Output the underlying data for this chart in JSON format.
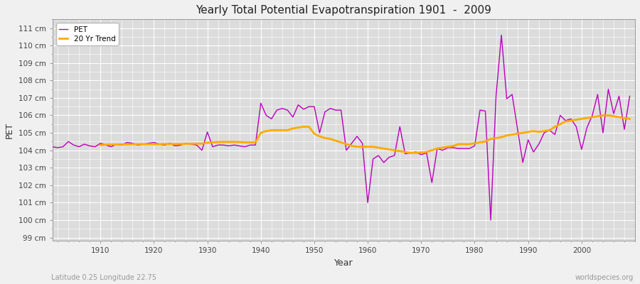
{
  "title": "Yearly Total Potential Evapotranspiration 1901  -  2009",
  "xlabel": "Year",
  "ylabel": "PET",
  "subtitle_left": "Latitude 0.25 Longitude 22.75",
  "subtitle_right": "worldspecies.org",
  "ylim": [
    98.8,
    111.5
  ],
  "ytick_labels": [
    "99 cm",
    "100 cm",
    "101 cm",
    "102 cm",
    "103 cm",
    "104 cm",
    "105 cm",
    "106 cm",
    "107 cm",
    "108 cm",
    "109 cm",
    "110 cm",
    "111 cm"
  ],
  "ytick_values": [
    99,
    100,
    101,
    102,
    103,
    104,
    105,
    106,
    107,
    108,
    109,
    110,
    111
  ],
  "pet_color": "#bb00bb",
  "trend_color": "#ffaa00",
  "bg_color": "#f0f0f0",
  "plot_bg_color": "#dcdcdc",
  "years": [
    1901,
    1902,
    1903,
    1904,
    1905,
    1906,
    1907,
    1908,
    1909,
    1910,
    1911,
    1912,
    1913,
    1914,
    1915,
    1916,
    1917,
    1918,
    1919,
    1920,
    1921,
    1922,
    1923,
    1924,
    1925,
    1926,
    1927,
    1928,
    1929,
    1930,
    1931,
    1932,
    1933,
    1934,
    1935,
    1936,
    1937,
    1938,
    1939,
    1940,
    1941,
    1942,
    1943,
    1944,
    1945,
    1946,
    1947,
    1948,
    1949,
    1950,
    1951,
    1952,
    1953,
    1954,
    1955,
    1956,
    1957,
    1958,
    1959,
    1960,
    1961,
    1962,
    1963,
    1964,
    1965,
    1966,
    1967,
    1968,
    1969,
    1970,
    1971,
    1972,
    1973,
    1974,
    1975,
    1976,
    1977,
    1978,
    1979,
    1980,
    1981,
    1982,
    1983,
    1984,
    1985,
    1986,
    1987,
    1988,
    1989,
    1990,
    1991,
    1992,
    1993,
    1994,
    1995,
    1996,
    1997,
    1998,
    1999,
    2000,
    2001,
    2002,
    2003,
    2004,
    2005,
    2006,
    2007,
    2008,
    2009
  ],
  "pet_values": [
    104.2,
    104.15,
    104.2,
    104.5,
    104.3,
    104.2,
    104.35,
    104.25,
    104.2,
    104.4,
    104.3,
    104.2,
    104.35,
    104.3,
    104.45,
    104.4,
    104.3,
    104.35,
    104.4,
    104.45,
    104.35,
    104.3,
    104.4,
    104.25,
    104.3,
    104.4,
    104.35,
    104.3,
    104.0,
    105.05,
    104.2,
    104.3,
    104.3,
    104.25,
    104.3,
    104.25,
    104.2,
    104.3,
    104.3,
    106.7,
    106.0,
    105.8,
    106.3,
    106.4,
    106.3,
    105.9,
    106.6,
    106.35,
    106.5,
    106.5,
    105.0,
    106.2,
    106.4,
    106.3,
    106.3,
    104.0,
    104.4,
    104.8,
    104.4,
    101.0,
    103.5,
    103.7,
    103.3,
    103.6,
    103.7,
    105.35,
    103.8,
    103.85,
    103.9,
    103.75,
    103.85,
    102.15,
    104.1,
    104.0,
    104.15,
    104.15,
    104.1,
    104.1,
    104.1,
    104.25,
    106.3,
    106.25,
    100.0,
    107.1,
    110.6,
    106.95,
    107.2,
    105.25,
    103.3,
    104.6,
    103.9,
    104.35,
    105.0,
    105.15,
    104.9,
    106.0,
    105.7,
    105.8,
    105.35,
    104.05,
    105.3,
    106.0,
    107.2,
    105.0,
    107.5,
    106.1,
    107.1,
    105.2,
    107.1
  ],
  "trend_years": [
    1910,
    1911,
    1912,
    1913,
    1914,
    1915,
    1916,
    1917,
    1918,
    1919,
    1920,
    1921,
    1922,
    1923,
    1924,
    1925,
    1926,
    1927,
    1928,
    1929,
    1930,
    1931,
    1932,
    1933,
    1934,
    1935,
    1936,
    1937,
    1938,
    1939,
    1940,
    1941,
    1942,
    1943,
    1944,
    1945,
    1946,
    1947,
    1948,
    1949,
    1950,
    1951,
    1952,
    1953,
    1954,
    1955,
    1956,
    1957,
    1958,
    1959,
    1960,
    1961,
    1962,
    1963,
    1964,
    1965,
    1966,
    1967,
    1968,
    1969,
    1970,
    1971,
    1972,
    1973,
    1974,
    1975,
    1976,
    1977,
    1978,
    1979,
    1980,
    1981,
    1982,
    1983,
    1984,
    1985,
    1986,
    1987,
    1988,
    1989,
    1990,
    1991,
    1992,
    1993,
    1994,
    1995,
    1996,
    1997,
    1998,
    1999,
    2000,
    2001,
    2002,
    2003,
    2004,
    2005,
    2006,
    2007,
    2008,
    2009
  ],
  "trend_values": [
    104.3,
    104.32,
    104.33,
    104.33,
    104.34,
    104.34,
    104.35,
    104.35,
    104.35,
    104.35,
    104.35,
    104.35,
    104.36,
    104.36,
    104.36,
    104.36,
    104.37,
    104.38,
    104.38,
    104.38,
    104.43,
    104.45,
    104.47,
    104.48,
    104.48,
    104.48,
    104.47,
    104.45,
    104.45,
    104.45,
    105.0,
    105.1,
    105.15,
    105.15,
    105.15,
    105.15,
    105.25,
    105.3,
    105.35,
    105.35,
    104.95,
    104.8,
    104.7,
    104.65,
    104.55,
    104.45,
    104.35,
    104.25,
    104.2,
    104.2,
    104.2,
    104.2,
    104.15,
    104.1,
    104.05,
    104.0,
    103.95,
    103.9,
    103.85,
    103.85,
    103.88,
    103.9,
    104.0,
    104.1,
    104.15,
    104.2,
    104.25,
    104.35,
    104.35,
    104.35,
    104.4,
    104.45,
    104.5,
    104.65,
    104.7,
    104.75,
    104.85,
    104.9,
    104.95,
    105.0,
    105.05,
    105.1,
    105.05,
    105.1,
    105.15,
    105.35,
    105.5,
    105.65,
    105.7,
    105.75,
    105.8,
    105.85,
    105.9,
    105.95,
    106.0,
    106.0,
    105.95,
    105.9,
    105.85,
    105.8
  ]
}
